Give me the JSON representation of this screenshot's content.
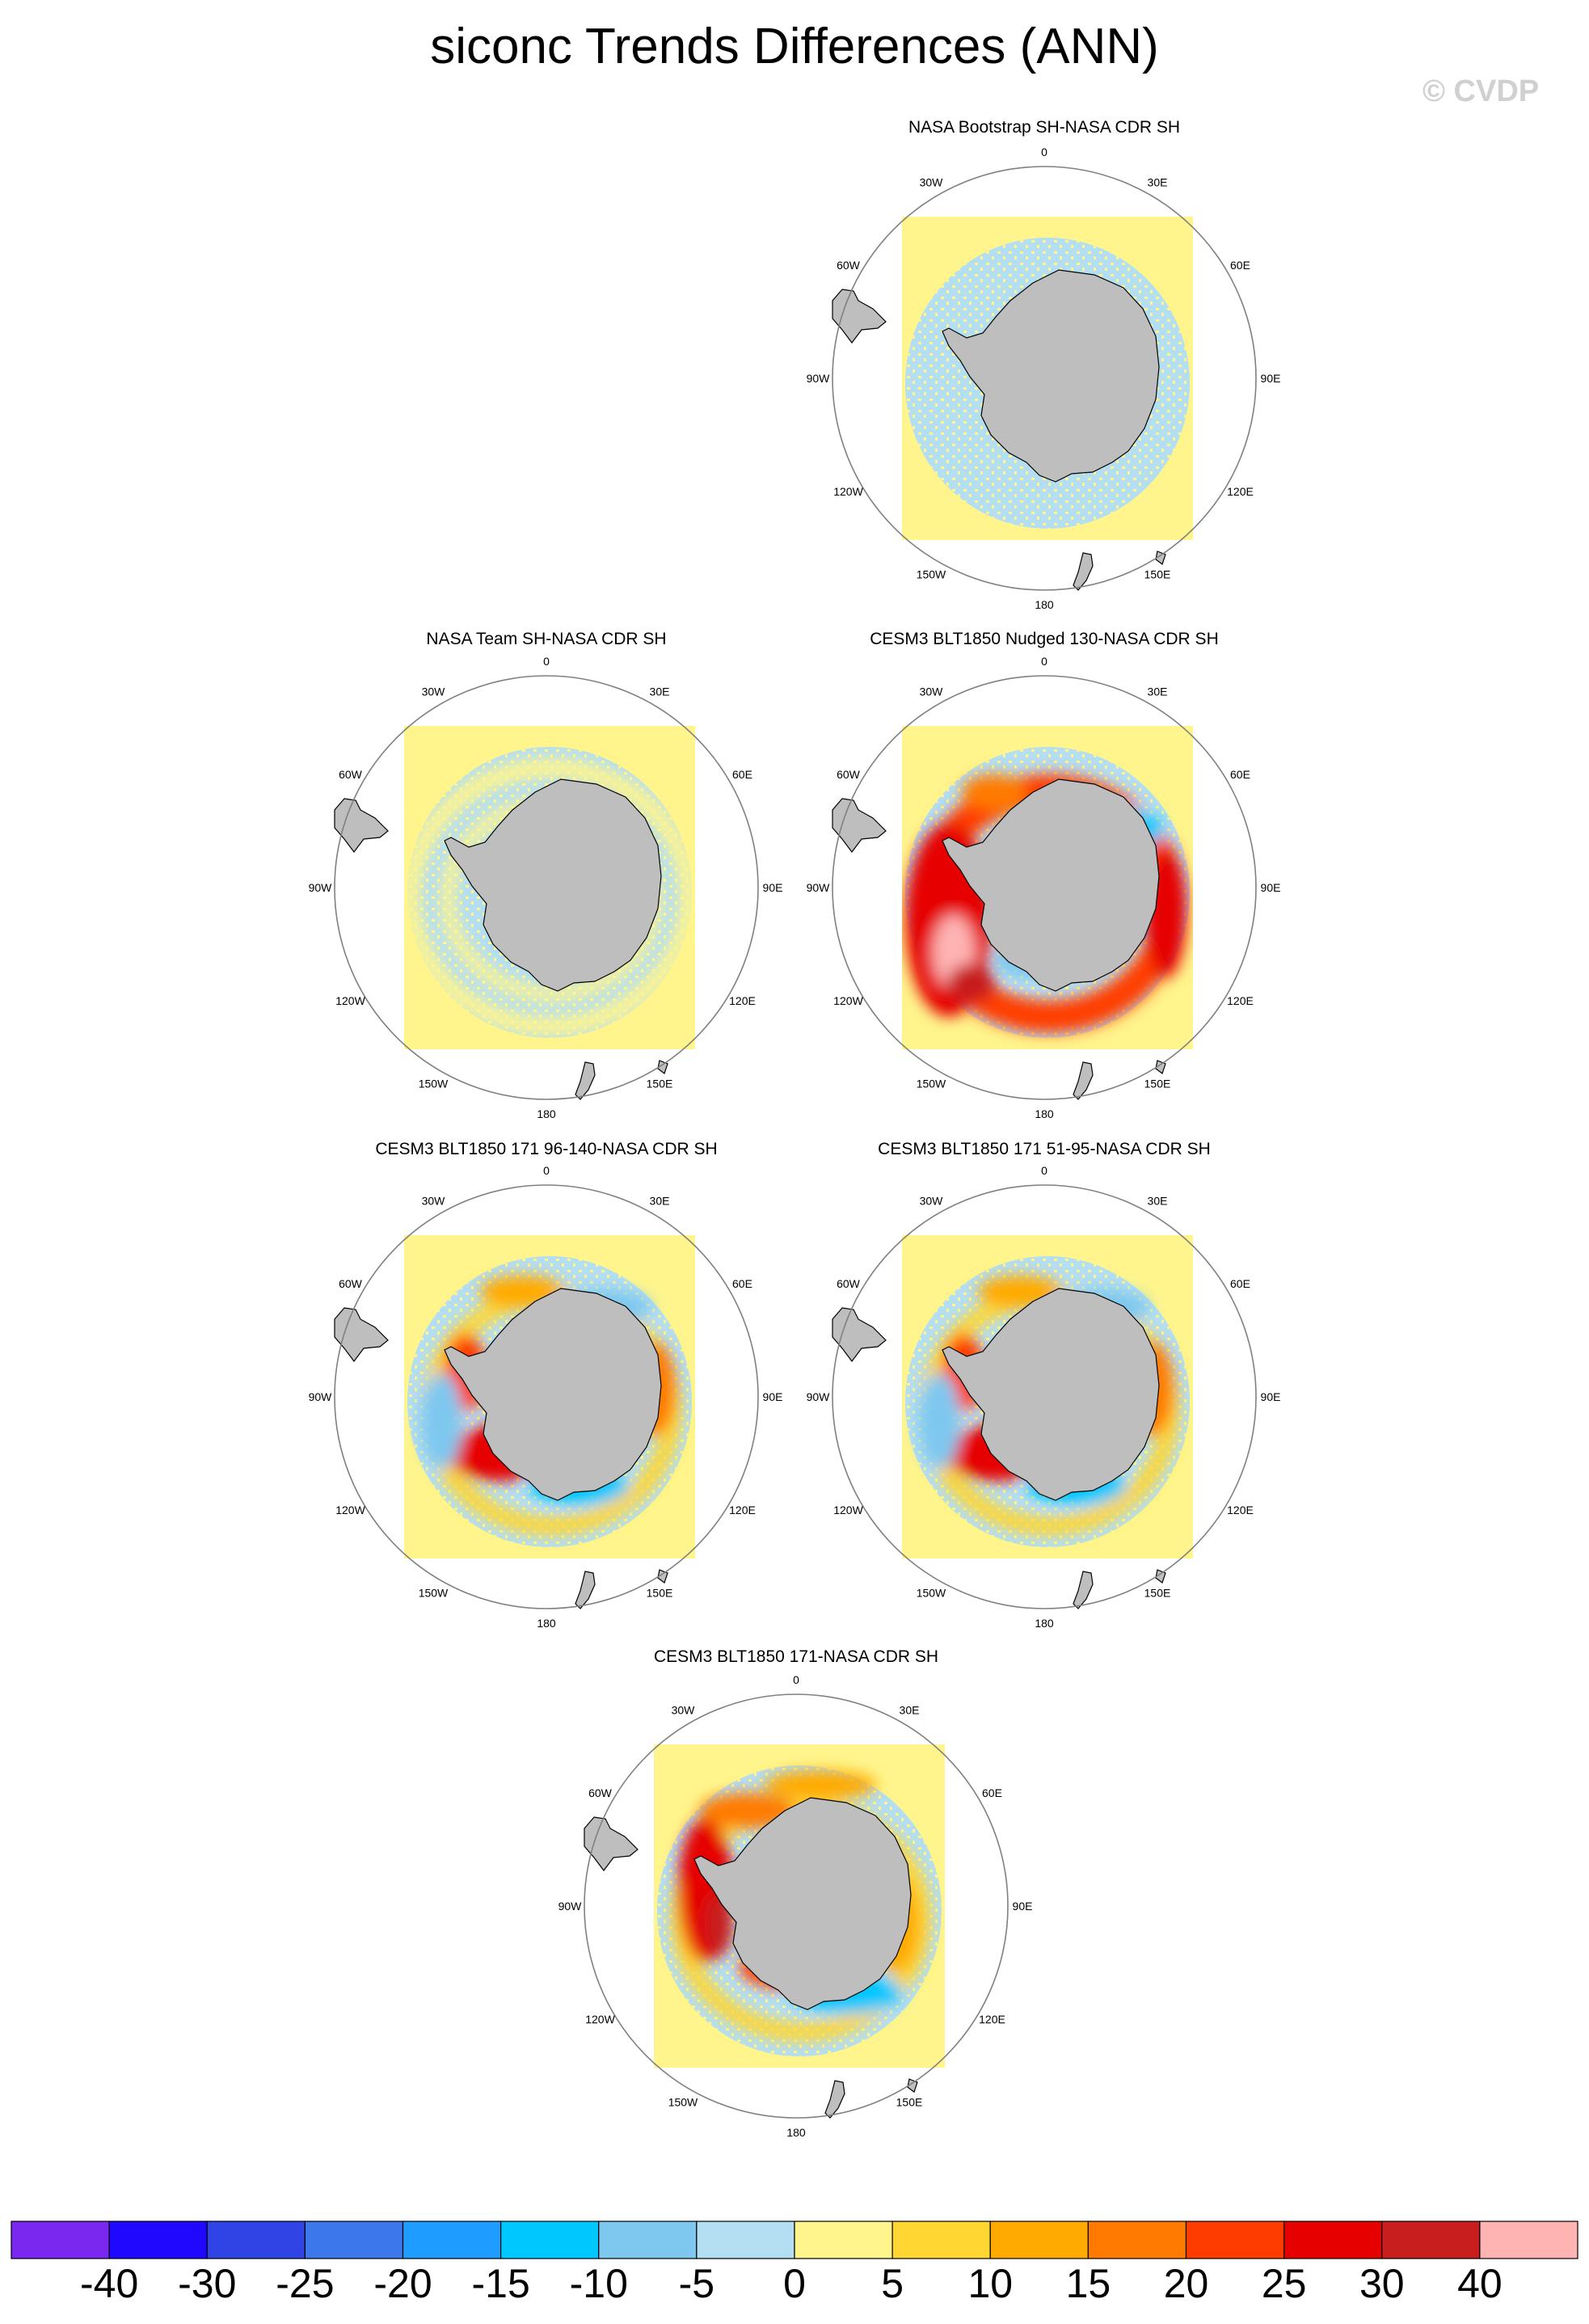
{
  "title": "siconc Trends Differences (ANN)",
  "watermark": "© CVDP",
  "longitude_labels": [
    "0",
    "30E",
    "60E",
    "90E",
    "120E",
    "150E",
    "180",
    "150W",
    "120W",
    "90W",
    "60W",
    "30W"
  ],
  "panels": [
    {
      "title": "NASA Bootstrap SH-NASA CDR SH",
      "pattern": "near-zero-light-blue",
      "dominant_bins": [
        "-5 to 0",
        "0 to 5"
      ]
    },
    {
      "title": "NASA Team SH-NASA CDR SH",
      "pattern": "near-zero-light-blue-with-yellow-rings",
      "dominant_bins": [
        "-5 to 0",
        "0 to 5"
      ]
    },
    {
      "title": "CESM3 BLT1850 Nudged 130-NASA CDR SH",
      "pattern": "strong-positive-weddell-ross-amundsen",
      "dominant_bins": [
        "20 to 40",
        "0 to 5",
        "-10 to -5"
      ]
    },
    {
      "title": "CESM3 BLT1850 171 96-140-NASA CDR SH",
      "pattern": "mixed-positive-ross-weddell",
      "dominant_bins": [
        "5 to 25",
        "-15 to -5"
      ]
    },
    {
      "title": "CESM3 BLT1850 171 51-95-NASA CDR SH",
      "pattern": "mixed-positive-ross-weddell",
      "dominant_bins": [
        "5 to 25",
        "-15 to -5"
      ]
    },
    {
      "title": "CESM3 BLT1850 171-NASA CDR SH",
      "pattern": "strong-positive-weddell",
      "dominant_bins": [
        "10 to 30",
        "-15 to -5"
      ]
    }
  ],
  "colorbar": {
    "labels": [
      "-40",
      "-30",
      "-25",
      "-20",
      "-15",
      "-10",
      "-5",
      "0",
      "5",
      "10",
      "15",
      "20",
      "25",
      "30",
      "40"
    ],
    "colors": [
      "#7a28f0",
      "#2008ff",
      "#3044e6",
      "#3c78ec",
      "#1e9cff",
      "#00c8ff",
      "#7ec8f0",
      "#b4def2",
      "#fff58c",
      "#ffd632",
      "#ffaa00",
      "#ff7a00",
      "#ff3c00",
      "#e60000",
      "#c81e1e",
      "#ffb4b4"
    ]
  },
  "colors": {
    "land": "#bebebe",
    "coast": "#000000",
    "circle": "#808080"
  }
}
